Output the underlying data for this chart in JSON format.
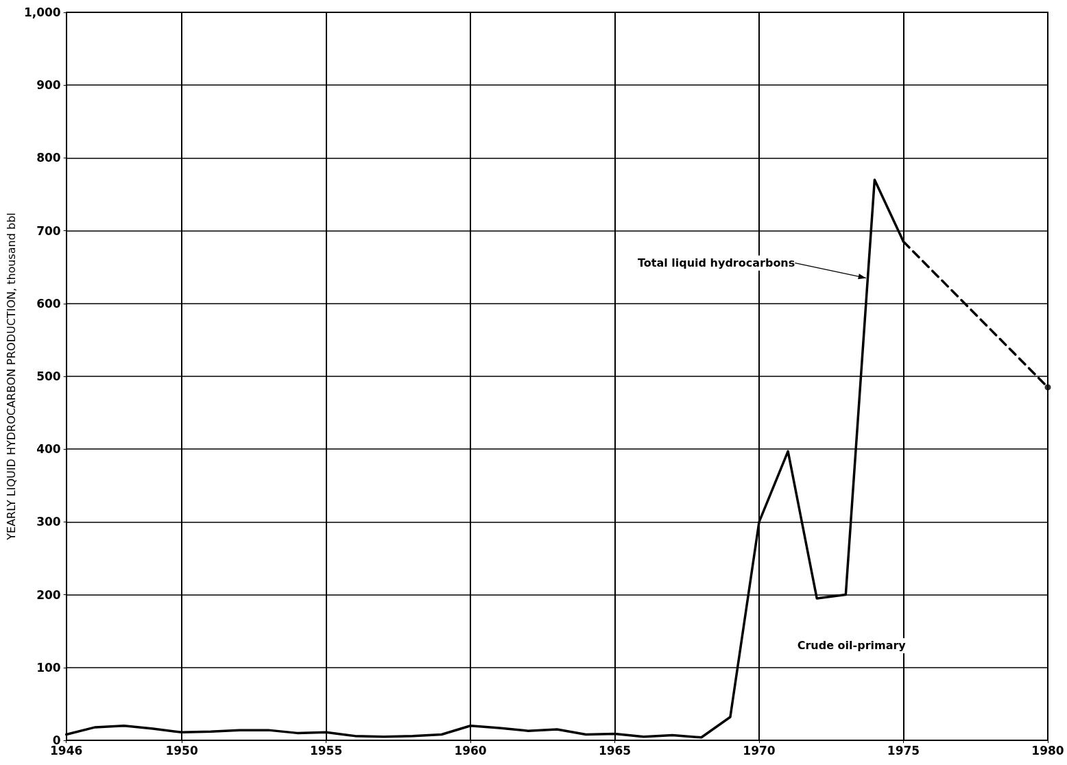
{
  "chart_data": {
    "type": "line",
    "ylabel": "YEARLY LIQUID HYDROCARBON PRODUCTION, thousand bbl",
    "xlim": [
      1946,
      1980
    ],
    "xticks": [
      1946,
      1950,
      1955,
      1960,
      1965,
      1970,
      1975,
      1980
    ],
    "ylim": [
      0,
      1000
    ],
    "yticks": [
      0,
      100,
      200,
      300,
      400,
      500,
      600,
      700,
      800,
      900,
      {
        "value": 1000,
        "label": "1,000"
      }
    ],
    "grid": true,
    "series": [
      {
        "color": "#000000",
        "line_style": "solid",
        "marker": "none",
        "x": [
          1946,
          1947,
          1948,
          1949,
          1950,
          1951,
          1952,
          1953,
          1954,
          1955,
          1956,
          1957,
          1958,
          1959,
          1960,
          1961,
          1962,
          1963,
          1964,
          1965,
          1966,
          1967,
          1968,
          1969,
          1970,
          1971,
          1972,
          1973,
          1974,
          1975
        ],
        "values": [
          8,
          18,
          20,
          16,
          11,
          12,
          14,
          14,
          10,
          11,
          6,
          5,
          6,
          8,
          20,
          17,
          13,
          15,
          8,
          9,
          5,
          7,
          4,
          32,
          300,
          397,
          195,
          200,
          770,
          685
        ]
      },
      {
        "color": "#000000",
        "line_style": "dashed",
        "marker": "none",
        "x": [
          1975,
          1980
        ],
        "values": [
          685,
          485
        ]
      },
      {
        "type": "scatter",
        "color": "#000000",
        "marker": "circle",
        "x": [
          1980
        ],
        "values": [
          485
        ]
      }
    ],
    "annotations": [
      {
        "text": "Total liquid hydrocarbons",
        "x": 1973.8,
        "y": 635
      },
      "Crude oil-primary"
    ]
  }
}
